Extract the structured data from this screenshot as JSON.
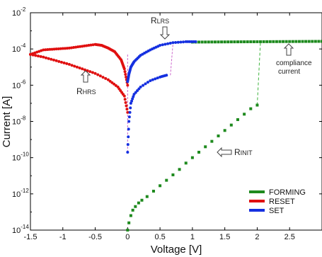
{
  "chart_data": {
    "type": "scatter",
    "xlabel": "Voltage [V]",
    "ylabel": "Current [A]",
    "xlim": [
      -1.5,
      3.0
    ],
    "ylim_exp": [
      -14,
      -2
    ],
    "y_scale": "log",
    "x_ticks": [
      "-1.5",
      "-1",
      "-0.5",
      "0",
      "0.5",
      "1",
      "1.5",
      "2",
      "2.5"
    ],
    "y_ticks": [
      {
        "base": "10",
        "exp": "-2"
      },
      {
        "base": "10",
        "exp": "-4"
      },
      {
        "base": "10",
        "exp": "-6"
      },
      {
        "base": "10",
        "exp": "-8"
      },
      {
        "base": "10",
        "exp": "-10"
      },
      {
        "base": "10",
        "exp": "-12"
      },
      {
        "base": "10",
        "exp": "-14"
      }
    ],
    "colors": {
      "forming": "#1e8a1e",
      "reset": "#e01010",
      "set": "#1530e0",
      "dashed_forming": "#3cb33c",
      "dashed_other": "#cc66cc"
    },
    "legend": {
      "placement": "bottom-right",
      "entries": [
        "FORMING",
        "RESET",
        "SET"
      ]
    },
    "series": [
      {
        "name": "FORMING",
        "points_x": [
          0.0,
          0.02,
          0.05,
          0.08,
          0.12,
          0.17,
          0.22,
          0.3,
          0.4,
          0.5,
          0.6,
          0.7,
          0.8,
          0.9,
          1.0,
          1.1,
          1.2,
          1.3,
          1.4,
          1.5,
          1.6,
          1.7,
          1.8,
          1.9,
          2.0
        ],
        "points_logy": [
          -14.0,
          -13.6,
          -13.2,
          -12.9,
          -12.7,
          -12.5,
          -12.35,
          -12.15,
          -11.85,
          -11.55,
          -11.25,
          -10.95,
          -10.65,
          -10.3,
          -10.0,
          -9.7,
          -9.4,
          -9.1,
          -8.8,
          -8.5,
          -8.2,
          -7.9,
          -7.6,
          -7.3,
          -7.1
        ],
        "compliance_x": [
          1.0,
          3.0
        ],
        "compliance_logy": [
          -3.62,
          -3.58
        ]
      },
      {
        "name": "RESET",
        "upper_x": [
          -1.5,
          -1.3,
          -1.1,
          -0.9,
          -0.7,
          -0.5,
          -0.4,
          -0.3,
          -0.2,
          -0.1,
          -0.05,
          0.0
        ],
        "upper_logy": [
          -4.3,
          -4.05,
          -4.0,
          -3.95,
          -3.85,
          -3.75,
          -3.8,
          -3.95,
          -4.15,
          -4.6,
          -5.1,
          -6.0
        ],
        "lower_x": [
          -1.5,
          -1.3,
          -1.1,
          -0.9,
          -0.7,
          -0.5,
          -0.3,
          -0.15,
          -0.05,
          0.0
        ],
        "lower_logy": [
          -4.3,
          -4.45,
          -4.65,
          -4.85,
          -5.1,
          -5.35,
          -5.7,
          -6.1,
          -6.6,
          -7.5
        ]
      },
      {
        "name": "SET",
        "upper_x": [
          0.0,
          0.02,
          0.05,
          0.1,
          0.2,
          0.35,
          0.5,
          0.7,
          0.9,
          1.05
        ],
        "upper_logy": [
          -5.8,
          -5.4,
          -5.0,
          -4.7,
          -4.35,
          -4.05,
          -3.8,
          -3.65,
          -3.6,
          -3.6
        ],
        "lower_x": [
          0.0,
          0.02,
          0.05,
          0.1,
          0.2,
          0.35,
          0.5,
          0.6
        ],
        "lower_logy": [
          -9.7,
          -8.0,
          -7.0,
          -6.5,
          -6.1,
          -5.75,
          -5.55,
          -5.45
        ]
      }
    ],
    "annotations": [
      {
        "key": "r_lrs",
        "base": "R",
        "sub": "LRS"
      },
      {
        "key": "r_hrs",
        "base": "R",
        "sub": "HRS"
      },
      {
        "key": "r_init",
        "base": "R",
        "sub": "INIT"
      },
      {
        "key": "compliance",
        "line1": "compliance",
        "line2": "current"
      }
    ]
  }
}
